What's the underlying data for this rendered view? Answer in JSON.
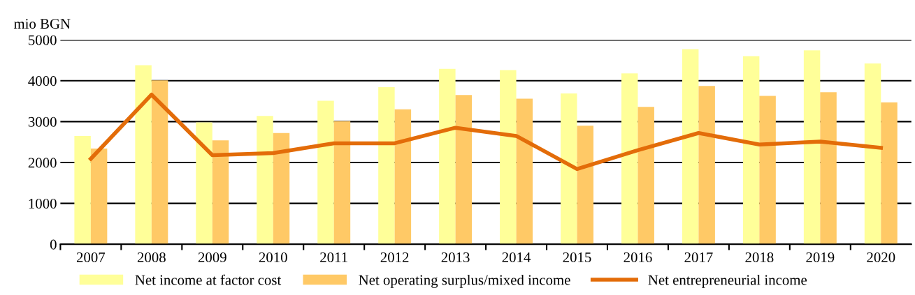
{
  "chart_data": {
    "type": "bar",
    "ylabel": "mio BGN",
    "categories": [
      "2007",
      "2008",
      "2009",
      "2010",
      "2011",
      "2012",
      "2013",
      "2014",
      "2015",
      "2016",
      "2017",
      "2018",
      "2019",
      "2020"
    ],
    "series": [
      {
        "name": "Net income at factor cost",
        "color": "#ffff99",
        "values": [
          2650,
          4380,
          2980,
          3140,
          3510,
          3840,
          4290,
          4260,
          3690,
          4180,
          4770,
          4600,
          4740,
          4420
        ]
      },
      {
        "name": "Net operating surplus/mixed income",
        "color": "#ffc966",
        "values": [
          2340,
          4010,
          2540,
          2720,
          3010,
          3300,
          3650,
          3560,
          2900,
          3360,
          3870,
          3630,
          3720,
          3470
        ]
      },
      {
        "name": "Net entrepreneurial income",
        "type": "line",
        "color": "#e36c09",
        "values": [
          2090,
          3660,
          2180,
          2230,
          2470,
          2470,
          2850,
          2650,
          1840,
          2300,
          2720,
          2440,
          2510,
          2360
        ]
      }
    ],
    "ylim": [
      0,
      5000
    ],
    "yticks": [
      0,
      1000,
      2000,
      3000,
      4000,
      5000
    ],
    "grid": "y",
    "legend": "bottom"
  }
}
